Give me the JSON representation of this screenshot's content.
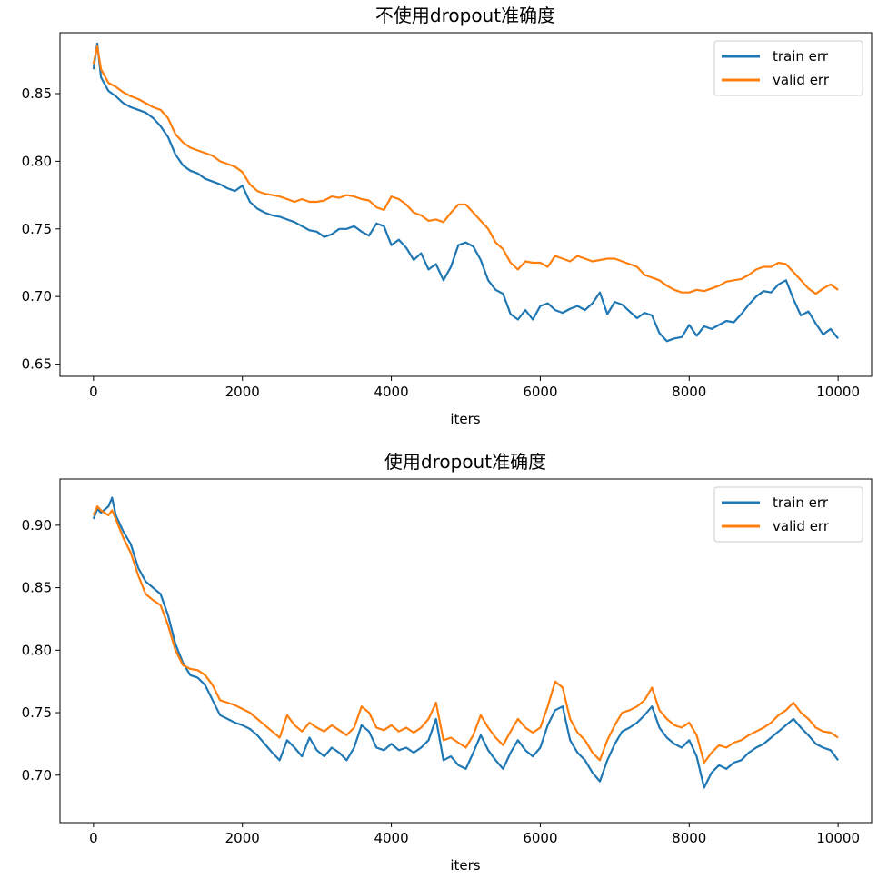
{
  "charts": [
    {
      "title": "不使用dropout准确度",
      "xlabel": "iters",
      "legend": {
        "placement": "top-right"
      },
      "xlim": [
        -450,
        10450
      ],
      "ylim": [
        0.641,
        0.895
      ],
      "xticks": [
        {
          "v": 0,
          "label": "0"
        },
        {
          "v": 2000,
          "label": "2000"
        },
        {
          "v": 4000,
          "label": "4000"
        },
        {
          "v": 6000,
          "label": "6000"
        },
        {
          "v": 8000,
          "label": "8000"
        },
        {
          "v": 10000,
          "label": "10000"
        }
      ],
      "yticks": [
        {
          "v": 0.65,
          "label": "0.65"
        },
        {
          "v": 0.7,
          "label": "0.70"
        },
        {
          "v": 0.75,
          "label": "0.75"
        },
        {
          "v": 0.8,
          "label": "0.80"
        },
        {
          "v": 0.85,
          "label": "0.85"
        }
      ]
    },
    {
      "title": "使用dropout准确度",
      "xlabel": "iters",
      "legend": {
        "placement": "top-right"
      },
      "xlim": [
        -450,
        10450
      ],
      "ylim": [
        0.662,
        0.937
      ],
      "xticks": [
        {
          "v": 0,
          "label": "0"
        },
        {
          "v": 2000,
          "label": "2000"
        },
        {
          "v": 4000,
          "label": "4000"
        },
        {
          "v": 6000,
          "label": "6000"
        },
        {
          "v": 8000,
          "label": "8000"
        },
        {
          "v": 10000,
          "label": "10000"
        }
      ],
      "yticks": [
        {
          "v": 0.7,
          "label": "0.70"
        },
        {
          "v": 0.75,
          "label": "0.75"
        },
        {
          "v": 0.8,
          "label": "0.80"
        },
        {
          "v": 0.85,
          "label": "0.85"
        },
        {
          "v": 0.9,
          "label": "0.90"
        }
      ]
    }
  ],
  "chart_data": [
    {
      "type": "line",
      "title": "不使用dropout准确度",
      "xlabel": "iters",
      "ylabel": "",
      "xlim": [
        -450,
        10450
      ],
      "ylim": [
        0.641,
        0.895
      ],
      "grid": false,
      "legend_position": "top-right",
      "series": [
        {
          "name": "train err",
          "color": "#1f77b4",
          "x": [
            0,
            50,
            100,
            200,
            300,
            400,
            500,
            600,
            700,
            800,
            900,
            1000,
            1100,
            1200,
            1300,
            1400,
            1500,
            1600,
            1700,
            1800,
            1900,
            2000,
            2100,
            2200,
            2300,
            2400,
            2500,
            2600,
            2700,
            2800,
            2900,
            3000,
            3100,
            3200,
            3300,
            3400,
            3500,
            3600,
            3700,
            3800,
            3900,
            4000,
            4100,
            4200,
            4300,
            4400,
            4500,
            4600,
            4700,
            4800,
            4900,
            5000,
            5100,
            5200,
            5300,
            5400,
            5500,
            5600,
            5700,
            5800,
            5900,
            6000,
            6100,
            6200,
            6300,
            6400,
            6500,
            6600,
            6700,
            6800,
            6900,
            7000,
            7100,
            7200,
            7300,
            7400,
            7500,
            7600,
            7700,
            7800,
            7900,
            8000,
            8100,
            8200,
            8300,
            8400,
            8500,
            8600,
            8700,
            8800,
            8900,
            9000,
            9100,
            9200,
            9300,
            9400,
            9500,
            9600,
            9700,
            9800,
            9900,
            10000
          ],
          "y": [
            0.868,
            0.887,
            0.862,
            0.852,
            0.848,
            0.843,
            0.84,
            0.838,
            0.836,
            0.832,
            0.826,
            0.818,
            0.805,
            0.797,
            0.793,
            0.791,
            0.787,
            0.785,
            0.783,
            0.78,
            0.778,
            0.782,
            0.77,
            0.765,
            0.762,
            0.76,
            0.759,
            0.757,
            0.755,
            0.752,
            0.749,
            0.748,
            0.744,
            0.746,
            0.75,
            0.75,
            0.752,
            0.748,
            0.745,
            0.754,
            0.752,
            0.738,
            0.742,
            0.736,
            0.727,
            0.732,
            0.72,
            0.724,
            0.712,
            0.722,
            0.738,
            0.74,
            0.737,
            0.727,
            0.712,
            0.705,
            0.702,
            0.687,
            0.683,
            0.69,
            0.683,
            0.693,
            0.695,
            0.69,
            0.688,
            0.691,
            0.693,
            0.69,
            0.695,
            0.703,
            0.687,
            0.696,
            0.694,
            0.689,
            0.684,
            0.688,
            0.686,
            0.673,
            0.667,
            0.669,
            0.67,
            0.679,
            0.671,
            0.678,
            0.676,
            0.679,
            0.682,
            0.681,
            0.687,
            0.694,
            0.7,
            0.704,
            0.703,
            0.709,
            0.712,
            0.698,
            0.686,
            0.689,
            0.68,
            0.672,
            0.676,
            0.669
          ]
        },
        {
          "name": "valid err",
          "color": "#ff7f0e",
          "x": [
            0,
            50,
            100,
            200,
            300,
            400,
            500,
            600,
            700,
            800,
            900,
            1000,
            1100,
            1200,
            1300,
            1400,
            1500,
            1600,
            1700,
            1800,
            1900,
            2000,
            2100,
            2200,
            2300,
            2400,
            2500,
            2600,
            2700,
            2800,
            2900,
            3000,
            3100,
            3200,
            3300,
            3400,
            3500,
            3600,
            3700,
            3800,
            3900,
            4000,
            4100,
            4200,
            4300,
            4400,
            4500,
            4600,
            4700,
            4800,
            4900,
            5000,
            5100,
            5200,
            5300,
            5400,
            5500,
            5600,
            5700,
            5800,
            5900,
            6000,
            6100,
            6200,
            6300,
            6400,
            6500,
            6600,
            6700,
            6800,
            6900,
            7000,
            7100,
            7200,
            7300,
            7400,
            7500,
            7600,
            7700,
            7800,
            7900,
            8000,
            8100,
            8200,
            8300,
            8400,
            8500,
            8600,
            8700,
            8800,
            8900,
            9000,
            9100,
            9200,
            9300,
            9400,
            9500,
            9600,
            9700,
            9800,
            9900,
            10000
          ],
          "y": [
            0.872,
            0.885,
            0.868,
            0.858,
            0.855,
            0.851,
            0.848,
            0.846,
            0.843,
            0.84,
            0.838,
            0.832,
            0.82,
            0.814,
            0.81,
            0.808,
            0.806,
            0.804,
            0.8,
            0.798,
            0.796,
            0.792,
            0.783,
            0.778,
            0.776,
            0.775,
            0.774,
            0.772,
            0.77,
            0.772,
            0.77,
            0.77,
            0.771,
            0.774,
            0.773,
            0.775,
            0.774,
            0.772,
            0.771,
            0.766,
            0.764,
            0.774,
            0.772,
            0.768,
            0.762,
            0.76,
            0.756,
            0.757,
            0.755,
            0.762,
            0.768,
            0.768,
            0.762,
            0.756,
            0.75,
            0.74,
            0.735,
            0.725,
            0.72,
            0.726,
            0.725,
            0.725,
            0.722,
            0.73,
            0.728,
            0.726,
            0.73,
            0.728,
            0.726,
            0.727,
            0.728,
            0.728,
            0.726,
            0.724,
            0.722,
            0.716,
            0.714,
            0.712,
            0.708,
            0.705,
            0.703,
            0.703,
            0.705,
            0.704,
            0.706,
            0.708,
            0.711,
            0.712,
            0.713,
            0.716,
            0.72,
            0.722,
            0.722,
            0.725,
            0.724,
            0.718,
            0.712,
            0.706,
            0.702,
            0.706,
            0.709,
            0.705
          ]
        }
      ]
    },
    {
      "type": "line",
      "title": "使用dropout准确度",
      "xlabel": "iters",
      "ylabel": "",
      "xlim": [
        -450,
        10450
      ],
      "ylim": [
        0.662,
        0.937
      ],
      "grid": false,
      "legend_position": "top-right",
      "series": [
        {
          "name": "train err",
          "color": "#1f77b4",
          "x": [
            0,
            50,
            100,
            200,
            250,
            300,
            400,
            500,
            600,
            700,
            800,
            900,
            1000,
            1100,
            1200,
            1300,
            1400,
            1500,
            1600,
            1700,
            1800,
            1900,
            2000,
            2100,
            2200,
            2300,
            2400,
            2500,
            2600,
            2700,
            2800,
            2900,
            3000,
            3100,
            3200,
            3300,
            3400,
            3500,
            3600,
            3700,
            3800,
            3900,
            4000,
            4100,
            4200,
            4300,
            4400,
            4500,
            4600,
            4700,
            4800,
            4900,
            5000,
            5100,
            5200,
            5300,
            5400,
            5500,
            5600,
            5700,
            5800,
            5900,
            6000,
            6100,
            6200,
            6300,
            6400,
            6500,
            6600,
            6700,
            6800,
            6900,
            7000,
            7100,
            7200,
            7300,
            7400,
            7500,
            7600,
            7700,
            7800,
            7900,
            8000,
            8100,
            8200,
            8300,
            8400,
            8500,
            8600,
            8700,
            8800,
            8900,
            9000,
            9100,
            9200,
            9300,
            9400,
            9500,
            9600,
            9700,
            9800,
            9900,
            10000
          ],
          "y": [
            0.905,
            0.913,
            0.91,
            0.915,
            0.922,
            0.908,
            0.895,
            0.885,
            0.866,
            0.855,
            0.85,
            0.845,
            0.828,
            0.805,
            0.79,
            0.78,
            0.778,
            0.772,
            0.76,
            0.748,
            0.745,
            0.742,
            0.74,
            0.737,
            0.732,
            0.725,
            0.718,
            0.712,
            0.728,
            0.722,
            0.715,
            0.73,
            0.72,
            0.715,
            0.722,
            0.718,
            0.712,
            0.722,
            0.74,
            0.735,
            0.722,
            0.72,
            0.725,
            0.72,
            0.722,
            0.718,
            0.722,
            0.728,
            0.745,
            0.712,
            0.715,
            0.708,
            0.705,
            0.718,
            0.732,
            0.72,
            0.712,
            0.705,
            0.718,
            0.728,
            0.72,
            0.715,
            0.722,
            0.74,
            0.752,
            0.755,
            0.728,
            0.718,
            0.712,
            0.702,
            0.695,
            0.712,
            0.725,
            0.735,
            0.738,
            0.742,
            0.748,
            0.755,
            0.738,
            0.73,
            0.725,
            0.722,
            0.728,
            0.715,
            0.69,
            0.702,
            0.708,
            0.705,
            0.71,
            0.712,
            0.718,
            0.722,
            0.725,
            0.73,
            0.735,
            0.74,
            0.745,
            0.738,
            0.732,
            0.725,
            0.722,
            0.72,
            0.712
          ]
        },
        {
          "name": "valid err",
          "color": "#ff7f0e",
          "x": [
            0,
            50,
            100,
            200,
            250,
            300,
            400,
            500,
            600,
            700,
            800,
            900,
            1000,
            1100,
            1200,
            1300,
            1400,
            1500,
            1600,
            1700,
            1800,
            1900,
            2000,
            2100,
            2200,
            2300,
            2400,
            2500,
            2600,
            2700,
            2800,
            2900,
            3000,
            3100,
            3200,
            3300,
            3400,
            3500,
            3600,
            3700,
            3800,
            3900,
            4000,
            4100,
            4200,
            4300,
            4400,
            4500,
            4600,
            4700,
            4800,
            4900,
            5000,
            5100,
            5200,
            5300,
            5400,
            5500,
            5600,
            5700,
            5800,
            5900,
            6000,
            6100,
            6200,
            6300,
            6400,
            6500,
            6600,
            6700,
            6800,
            6900,
            7000,
            7100,
            7200,
            7300,
            7400,
            7500,
            7600,
            7700,
            7800,
            7900,
            8000,
            8100,
            8200,
            8300,
            8400,
            8500,
            8600,
            8700,
            8800,
            8900,
            9000,
            9100,
            9200,
            9300,
            9400,
            9500,
            9600,
            9700,
            9800,
            9900,
            10000
          ],
          "y": [
            0.908,
            0.915,
            0.912,
            0.908,
            0.912,
            0.905,
            0.89,
            0.878,
            0.86,
            0.845,
            0.84,
            0.836,
            0.82,
            0.8,
            0.788,
            0.785,
            0.784,
            0.78,
            0.772,
            0.76,
            0.758,
            0.756,
            0.753,
            0.75,
            0.745,
            0.74,
            0.735,
            0.73,
            0.748,
            0.74,
            0.735,
            0.742,
            0.738,
            0.735,
            0.74,
            0.736,
            0.732,
            0.738,
            0.755,
            0.75,
            0.738,
            0.736,
            0.74,
            0.735,
            0.738,
            0.734,
            0.738,
            0.745,
            0.758,
            0.728,
            0.73,
            0.726,
            0.722,
            0.732,
            0.748,
            0.738,
            0.73,
            0.724,
            0.735,
            0.745,
            0.738,
            0.734,
            0.738,
            0.755,
            0.775,
            0.77,
            0.745,
            0.734,
            0.728,
            0.718,
            0.712,
            0.728,
            0.74,
            0.75,
            0.752,
            0.755,
            0.76,
            0.77,
            0.752,
            0.745,
            0.74,
            0.738,
            0.742,
            0.732,
            0.71,
            0.718,
            0.724,
            0.722,
            0.726,
            0.728,
            0.732,
            0.735,
            0.738,
            0.742,
            0.748,
            0.752,
            0.758,
            0.75,
            0.745,
            0.738,
            0.735,
            0.734,
            0.73
          ]
        }
      ]
    }
  ]
}
